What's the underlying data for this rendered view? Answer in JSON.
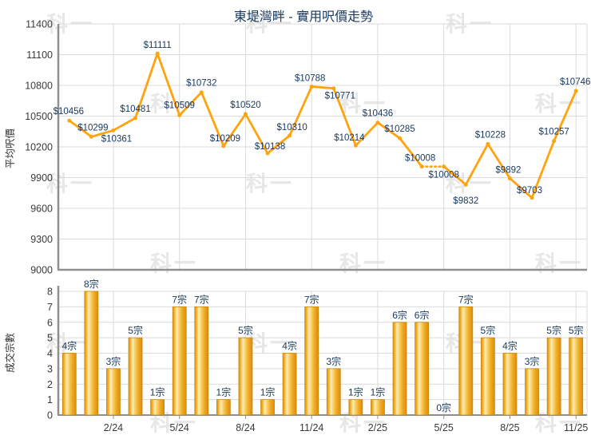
{
  "title": "東堤灣畔 - 實用呎價走勢",
  "watermark_text": "科一",
  "colors": {
    "line": "#ffa30f",
    "bar_edge": "#c9880e",
    "bar_mid": "#f5bb3a",
    "bar_highlight": "#fcedbe",
    "bar_dark": "#dd9110",
    "data_label": "#17375d",
    "axis_text": "#3a3a3a",
    "grid": "#dbdbdb",
    "axis_line": "#8f8f8f",
    "title": "#17375d",
    "watermark": "#e7e7e7"
  },
  "chart_data": [
    {
      "type": "line",
      "title": "東堤灣畔 - 實用呎價走勢",
      "ylabel": "平均呎價",
      "ylim": [
        9000,
        11400
      ],
      "y_ticks": [
        "9000",
        "9300",
        "9600",
        "9900",
        "10200",
        "10500",
        "10800",
        "11100",
        "11400"
      ],
      "x_ticks": [
        "2/24",
        "5/24",
        "8/24",
        "11/24",
        "2/25",
        "5/25",
        "8/25",
        "11/25"
      ],
      "grid": "on",
      "legend": "none",
      "values": [
        10456,
        10299,
        10361,
        10481,
        11111,
        10509,
        10732,
        10209,
        10520,
        10138,
        10310,
        10788,
        10771,
        10214,
        10436,
        10285,
        10008,
        10008,
        9832,
        10228,
        9892,
        9703,
        10257,
        10746
      ],
      "point_labels": [
        "$10456",
        "$10299",
        "$10361",
        "$10481",
        "$11111",
        "$10509",
        "$10732",
        "$10209",
        "$10520",
        "$10138",
        "$10310",
        "$10788",
        "$10771",
        "$10214",
        "$10436",
        "$10285",
        "$10008",
        "$10008",
        "$9832",
        "$10228",
        "$9892",
        "$9703",
        "$10257",
        "$10746"
      ],
      "dotted_segment_indices": [
        16,
        17
      ]
    },
    {
      "type": "bar",
      "ylabel": "成交宗數",
      "ylim": [
        0,
        8
      ],
      "y_ticks": [
        "0",
        "1",
        "2",
        "3",
        "4",
        "5",
        "6",
        "7",
        "8"
      ],
      "x_ticks": [
        "2/24",
        "5/24",
        "8/24",
        "11/24",
        "2/25",
        "5/25",
        "8/25",
        "11/25"
      ],
      "grid": "on",
      "values": [
        4,
        8,
        3,
        5,
        1,
        7,
        7,
        1,
        5,
        1,
        4,
        7,
        3,
        1,
        1,
        6,
        6,
        0,
        7,
        5,
        4,
        3,
        5,
        5
      ],
      "bar_labels": [
        "4宗",
        "8宗",
        "3宗",
        "5宗",
        "1宗",
        "7宗",
        "7宗",
        "1宗",
        "5宗",
        "1宗",
        "4宗",
        "7宗",
        "3宗",
        "1宗",
        "1宗",
        "6宗",
        "6宗",
        "0宗",
        "7宗",
        "5宗",
        "4宗",
        "3宗",
        "5宗",
        "5宗"
      ]
    }
  ]
}
